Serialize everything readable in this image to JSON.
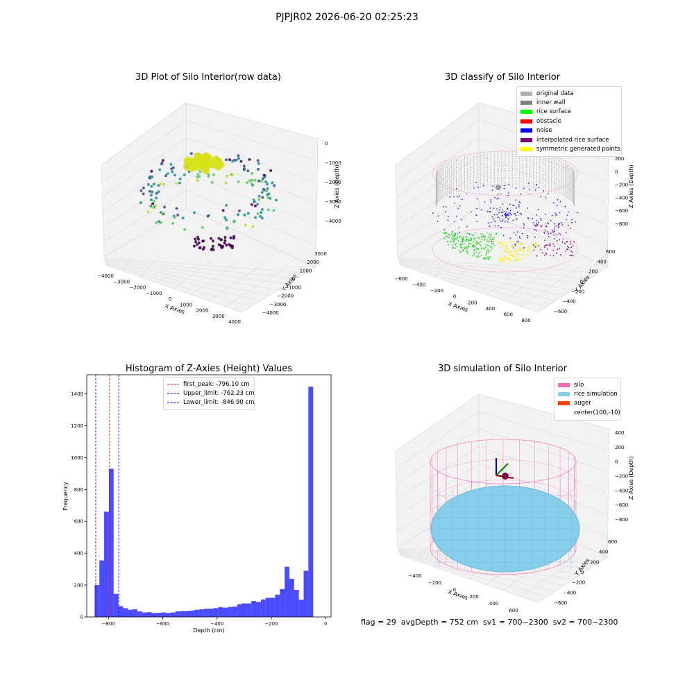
{
  "figure": {
    "suptitle": "PJPJR02 2026-06-20 02:25:23",
    "status_line": "flag = 29  avgDepth = 752 cm  sv1 = 700~2300  sv2 = 700~2300"
  },
  "chart_data": [
    {
      "type": "scatter",
      "title": "3D Plot of Silo Interior(row data)",
      "xlabel": "X Axies",
      "ylabel": "Y Axies",
      "zlabel": "Z Axies (Depth)",
      "x_ticks": [
        "−4000",
        "−3000",
        "−2000",
        "−1000",
        "0",
        "1000",
        "2000",
        "3000",
        "4000"
      ],
      "y_ticks": [
        "−4000",
        "−3000",
        "−2000",
        "−1000",
        "0",
        "1000",
        "2000",
        "3000"
      ],
      "z_ticks": [
        "0",
        "−1000",
        "−2000",
        "−3000",
        "−4000"
      ],
      "colormap": "viridis",
      "grid": true
    },
    {
      "type": "scatter",
      "title": "3D classify of Silo Interior",
      "xlabel": "X Axies",
      "ylabel": "Y Axies",
      "zlabel": "Z Axies (Depth)",
      "x_ticks": [
        "−600",
        "−400",
        "−200",
        "0",
        "200",
        "400",
        "600",
        "800"
      ],
      "y_ticks": [
        "−600",
        "−400",
        "−200",
        "0",
        "200",
        "400",
        "600"
      ],
      "z_ticks": [
        "200",
        "0",
        "−200",
        "−400",
        "−600",
        "−800"
      ],
      "legend_position": "top-right",
      "legend": [
        {
          "label": "original data",
          "color": "#b0b0b0"
        },
        {
          "label": "inner wall",
          "color": "#808080"
        },
        {
          "label": "rice surface",
          "color": "#00ff00"
        },
        {
          "label": "obstacle",
          "color": "#ff0000"
        },
        {
          "label": "noise",
          "color": "#0000ff"
        },
        {
          "label": "interpolated rice surface",
          "color": "#800080"
        },
        {
          "label": "symmetric generated points",
          "color": "#ffff00"
        }
      ],
      "grid": true
    },
    {
      "type": "bar",
      "title": "Histogram of Z-Axies (Height) Values",
      "xlabel": "Depth (cm)",
      "ylabel": "Frequency",
      "xlim": [
        -880,
        20
      ],
      "ylim": [
        0,
        1520
      ],
      "x_ticks": [
        -800,
        -600,
        -400,
        -200,
        0
      ],
      "x_tick_labels": [
        "−800",
        "−600",
        "−400",
        "−200",
        "0"
      ],
      "y_ticks": [
        0,
        200,
        400,
        600,
        800,
        1000,
        1200,
        1400
      ],
      "y_tick_labels": [
        "0",
        "200",
        "400",
        "600",
        "800",
        "1000",
        "1200",
        "1400"
      ],
      "bar_color": "#0000ff",
      "bin_start": -851,
      "bin_width": 17.5,
      "values": [
        200,
        355,
        660,
        930,
        145,
        68,
        55,
        45,
        48,
        35,
        28,
        30,
        25,
        26,
        28,
        25,
        28,
        35,
        38,
        38,
        40,
        45,
        48,
        52,
        52,
        55,
        62,
        58,
        62,
        65,
        80,
        85,
        85,
        100,
        95,
        110,
        120,
        120,
        140,
        175,
        315,
        240,
        170,
        108,
        290,
        1445
      ],
      "reference_lines": [
        {
          "label": "first_peak: -796.10 cm",
          "value": -796.1,
          "color": "#ff0000"
        },
        {
          "label": "Upper_limit: -762.23 cm",
          "value": -762.23,
          "color": "#0000ff"
        },
        {
          "label": "Lower_limit: -846.90 cm",
          "value": -846.9,
          "color": "#0000ff"
        }
      ],
      "legend_position": "top-center"
    },
    {
      "type": "scatter",
      "title": "3D simulation of Silo Interior",
      "xlabel": "X Axies",
      "ylabel": "Y Axies",
      "zlabel": "Z Axies (Depth)",
      "x_ticks": [
        "−400",
        "−200",
        "0",
        "200",
        "400",
        "600"
      ],
      "y_ticks": [
        "−600",
        "−400",
        "−200",
        "0",
        "200",
        "400",
        "600"
      ],
      "z_ticks": [
        "400",
        "200",
        "0",
        "−200",
        "−400",
        "−600",
        "−800"
      ],
      "legend_position": "top-right",
      "legend": [
        {
          "label": "silo",
          "color": "#ff69b4"
        },
        {
          "label": "rice simulation",
          "color": "#87ceeb"
        },
        {
          "label": "auger",
          "color": "#ff4500"
        },
        {
          "label": "center(100,-10)",
          "color": ""
        }
      ],
      "grid": true
    }
  ]
}
